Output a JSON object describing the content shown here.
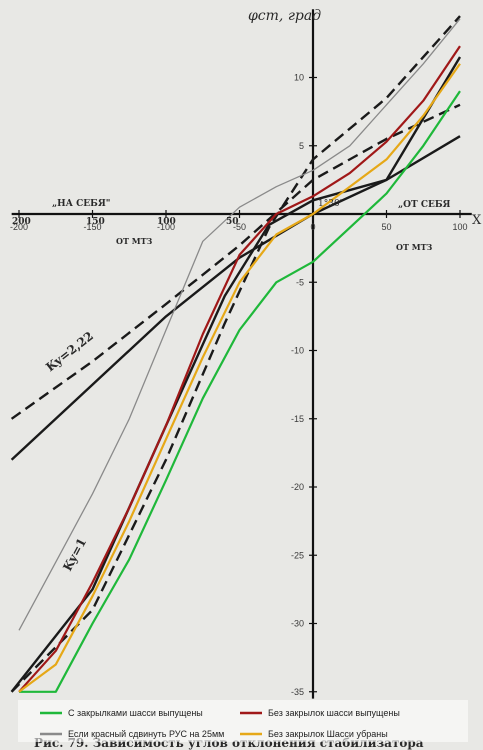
{
  "chart_data": {
    "type": "line",
    "xlim": [
      -205,
      108
    ],
    "ylim": [
      -35.5,
      15
    ],
    "x_ticks": [
      -200,
      -150,
      -100,
      -50,
      0,
      50,
      100
    ],
    "y_ticks": [
      10,
      5,
      -5,
      -10,
      -15,
      -20,
      -25,
      -30,
      -35
    ],
    "grid": false,
    "legend_position": "bottom",
    "annotations": {
      "y_axis_label": "φст, град",
      "x_axis_letter": "X",
      "left_direction": "„НА СЕБЯ\"",
      "right_direction": "„ОТ СЕБЯ",
      "left_mtz": "ОТ МТЗ",
      "right_mtz": "ОТ МТЗ",
      "angle_note": "1°30'",
      "ky_high": "Ky=2,22",
      "ky_low": "Ky=1",
      "left_scale_200": "200",
      "left_scale_150": "150",
      "left_scale_100": "100",
      "left_scale_50": "50",
      "caption": "Рис. 79. Зависимость углов отклонения стабилизатора"
    },
    "series": [
      {
        "name": "С закрылками шасси выпущены",
        "color": "#1fb83a",
        "points": [
          [
            -200,
            -35
          ],
          [
            -175,
            -35
          ],
          [
            -150,
            -30
          ],
          [
            -125,
            -25.3
          ],
          [
            -100,
            -19.5
          ],
          [
            -75,
            -13.5
          ],
          [
            -50,
            -8.5
          ],
          [
            -25,
            -5
          ],
          [
            0,
            -3.5
          ],
          [
            25,
            -1
          ],
          [
            50,
            1.5
          ],
          [
            75,
            5
          ],
          [
            100,
            9
          ]
        ]
      },
      {
        "name": "Без закрылок шасси выпущены",
        "color": "#a01818",
        "points": [
          [
            -200,
            -35
          ],
          [
            -175,
            -32
          ],
          [
            -150,
            -27
          ],
          [
            -125,
            -21.5
          ],
          [
            -100,
            -15.5
          ],
          [
            -75,
            -8.8
          ],
          [
            -50,
            -3
          ],
          [
            -25,
            0
          ],
          [
            0,
            1.3
          ],
          [
            25,
            3
          ],
          [
            50,
            5.3
          ],
          [
            75,
            8.3
          ],
          [
            100,
            12.3
          ]
        ]
      },
      {
        "name": "Если красный сдвинуть РУС на 25мм",
        "color": "#8a8a8a",
        "points": [
          [
            -200,
            -30.5
          ],
          [
            -175,
            -25.5
          ],
          [
            -150,
            -20.5
          ],
          [
            -125,
            -15
          ],
          [
            -100,
            -8.5
          ],
          [
            -75,
            -2
          ],
          [
            -50,
            0.5
          ],
          [
            -25,
            2
          ],
          [
            0,
            3.2
          ],
          [
            25,
            5
          ],
          [
            50,
            8
          ],
          [
            75,
            11
          ],
          [
            100,
            14.3
          ]
        ]
      },
      {
        "name": "Без закрылок Шасси убраны",
        "color": "#e6a817",
        "points": [
          [
            -200,
            -35
          ],
          [
            -175,
            -33
          ],
          [
            -150,
            -28
          ],
          [
            -125,
            -22.5
          ],
          [
            -100,
            -16.5
          ],
          [
            -75,
            -10.5
          ],
          [
            -50,
            -5
          ],
          [
            -25,
            -1.5
          ],
          [
            0,
            0
          ],
          [
            25,
            2
          ],
          [
            50,
            4
          ],
          [
            75,
            7.2
          ],
          [
            100,
            11
          ]
        ]
      }
    ],
    "reference_curves": [
      {
        "name": "Ky=2,22",
        "dash": true,
        "points": [
          [
            -205,
            -15
          ],
          [
            -150,
            -10.8
          ],
          [
            -100,
            -6.6
          ],
          [
            -50,
            -2.3
          ],
          [
            0,
            2.5
          ],
          [
            50,
            5.5
          ],
          [
            100,
            8
          ]
        ]
      },
      {
        "name": "Ky=2,22 solid",
        "dash": false,
        "points": [
          [
            -205,
            -18
          ],
          [
            -150,
            -12.5
          ],
          [
            -100,
            -7.5
          ],
          [
            -50,
            -3.2
          ],
          [
            0,
            0
          ],
          [
            50,
            2.5
          ],
          [
            100,
            5.7
          ]
        ]
      },
      {
        "name": "Ky=1",
        "dash": true,
        "points": [
          [
            -205,
            -35
          ],
          [
            -150,
            -29
          ],
          [
            -100,
            -18
          ],
          [
            -60,
            -8
          ],
          [
            -30,
            -1
          ],
          [
            0,
            4
          ],
          [
            50,
            8.5
          ],
          [
            100,
            14.5
          ]
        ]
      },
      {
        "name": "Ky=1 solid",
        "dash": false,
        "points": [
          [
            -205,
            -35
          ],
          [
            -150,
            -27.5
          ],
          [
            -100,
            -15.5
          ],
          [
            -60,
            -6
          ],
          [
            -30,
            -0.8
          ],
          [
            0,
            1
          ],
          [
            50,
            2.5
          ],
          [
            100,
            11.5
          ]
        ]
      }
    ]
  }
}
